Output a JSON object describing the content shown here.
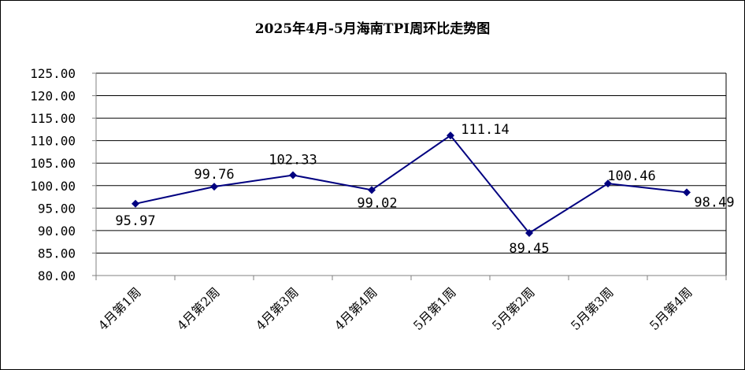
{
  "chart_data": {
    "type": "line",
    "title": "2025年4月-5月海南TPI周环比走势图",
    "categories": [
      "4月第1周",
      "4月第2周",
      "4月第3周",
      "4月第4周",
      "5月第1周",
      "5月第2周",
      "5月第3周",
      "5月第4周"
    ],
    "series": [
      {
        "values": [
          95.97,
          99.76,
          102.33,
          99.02,
          111.14,
          89.45,
          100.46,
          98.49
        ],
        "labels": [
          "95.97",
          "99.76",
          "102.33",
          "99.02",
          "111.14",
          "89.45",
          "100.46",
          "98.49"
        ],
        "color": "#000080"
      }
    ],
    "ylim": [
      80,
      125
    ],
    "yticks": [
      "80.00",
      "85.00",
      "90.00",
      "95.00",
      "100.00",
      "105.00",
      "110.00",
      "115.00",
      "120.00",
      "125.00"
    ],
    "grid": true,
    "marker": "diamond"
  }
}
